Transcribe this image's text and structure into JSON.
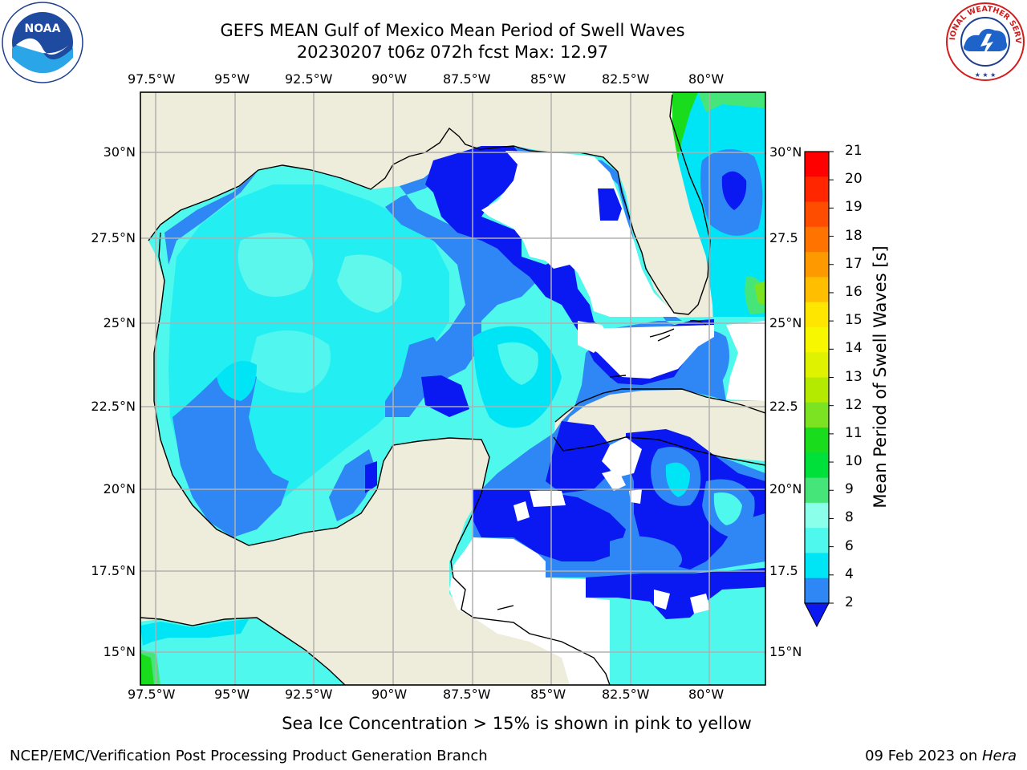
{
  "title": {
    "line1": "GEFS MEAN Gulf of Mexico Mean Period of Swell Waves",
    "line2": "20230207 t06z 072h fcst   Max: 12.97"
  },
  "map": {
    "lon_ticks": [
      "97.5°W",
      "95°W",
      "92.5°W",
      "90°W",
      "87.5°W",
      "85°W",
      "82.5°W",
      "80°W"
    ],
    "lat_ticks": [
      "30°N",
      "27.5°N",
      "25°N",
      "22.5°N",
      "20°N",
      "17.5°N",
      "15°N"
    ],
    "right_lat_ticks": [
      "30°N",
      "27.5",
      "25°N",
      "22.5",
      "20°N",
      "17.5",
      "15°N"
    ],
    "land_color": "#eeecda",
    "ocean_colors": {
      "2-4": "#0a18f2",
      "4-6": "#2f86f5",
      "6-8": "#00e5f5",
      "8-9": "#4ef8ec",
      "9-10": "#8affea",
      "10-11": "#46e57a",
      "11-12": "#18dc1c",
      "12-13": "#7be321"
    }
  },
  "colorbar": {
    "title": "Mean Period of Swell Waves [s]",
    "labels": [
      "21",
      "20",
      "19",
      "18",
      "17",
      "16",
      "15",
      "14",
      "13",
      "12",
      "11",
      "10",
      "9",
      "8",
      "6",
      "4",
      "2"
    ],
    "colors": [
      "#ff0000",
      "#ff2600",
      "#ff4d00",
      "#ff7300",
      "#ff9900",
      "#ffbf00",
      "#ffe600",
      "#f7f700",
      "#dff200",
      "#b4ea00",
      "#7be321",
      "#18dc1c",
      "#00e03a",
      "#46e57a",
      "#8affea",
      "#4ef8ec",
      "#00e5f5",
      "#2f86f5"
    ],
    "extend_color": "#0a18f2"
  },
  "note": "Sea Ice Concentration > 15% is shown in pink to yellow",
  "footer": {
    "left": "NCEP/EMC/Verification Post Processing Product Generation Branch",
    "right_date": "09 Feb 2023 on ",
    "right_host": "Hera"
  },
  "logos": {
    "noaa_text": "NOAA",
    "nws_text": "NATIONAL WEATHER SERVICE"
  }
}
